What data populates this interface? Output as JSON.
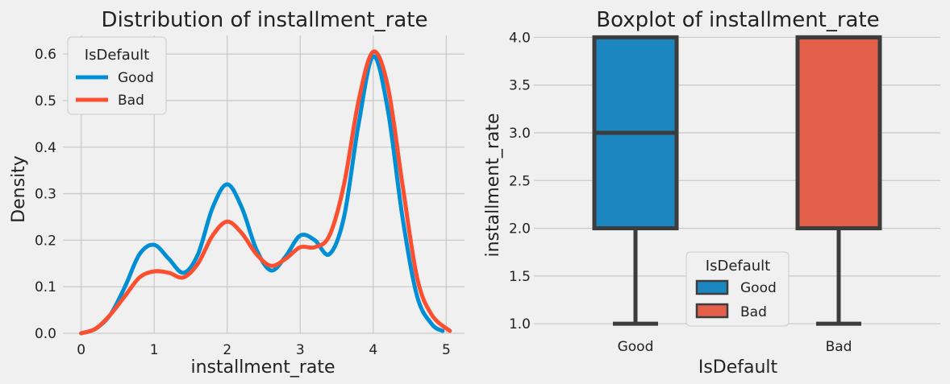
{
  "chart_data": [
    {
      "type": "line",
      "title": "Distribution of installment_rate",
      "xlabel": "installment_rate",
      "ylabel": "Density",
      "xlim": [
        -0.25,
        5.25
      ],
      "ylim": [
        0,
        0.64
      ],
      "xticks": [
        "0",
        "1",
        "2",
        "3",
        "4",
        "5"
      ],
      "yticks": [
        "0.0",
        "0.1",
        "0.2",
        "0.3",
        "0.4",
        "0.5",
        "0.6"
      ],
      "grid": true,
      "legend": {
        "title": "IsDefault",
        "position": "top-left"
      },
      "series": [
        {
          "name": "Good",
          "color": "#008fd5",
          "x": [
            0,
            0.2,
            0.4,
            0.6,
            0.8,
            1.0,
            1.2,
            1.4,
            1.6,
            1.8,
            2.0,
            2.2,
            2.4,
            2.6,
            2.8,
            3.0,
            3.2,
            3.4,
            3.6,
            3.8,
            4.0,
            4.2,
            4.4,
            4.6,
            4.8,
            4.95
          ],
          "y": [
            0.0,
            0.01,
            0.04,
            0.1,
            0.17,
            0.19,
            0.16,
            0.13,
            0.17,
            0.27,
            0.32,
            0.27,
            0.18,
            0.135,
            0.165,
            0.21,
            0.2,
            0.17,
            0.25,
            0.45,
            0.595,
            0.48,
            0.25,
            0.08,
            0.02,
            0.005
          ]
        },
        {
          "name": "Bad",
          "color": "#fc4f30",
          "x": [
            0,
            0.2,
            0.4,
            0.6,
            0.8,
            1.0,
            1.2,
            1.4,
            1.6,
            1.8,
            2.0,
            2.2,
            2.4,
            2.6,
            2.8,
            3.0,
            3.2,
            3.4,
            3.6,
            3.8,
            4.0,
            4.2,
            4.4,
            4.6,
            4.8,
            5.05
          ],
          "y": [
            0.0,
            0.01,
            0.04,
            0.08,
            0.12,
            0.133,
            0.13,
            0.12,
            0.15,
            0.21,
            0.24,
            0.215,
            0.17,
            0.145,
            0.16,
            0.185,
            0.185,
            0.21,
            0.32,
            0.5,
            0.605,
            0.53,
            0.32,
            0.12,
            0.04,
            0.005
          ]
        }
      ]
    },
    {
      "type": "box",
      "title": "Boxplot of installment_rate",
      "xlabel": "IsDefault",
      "ylabel": "installment_rate",
      "ylim": [
        0.9,
        4.02
      ],
      "yticks": [
        "1.0",
        "1.5",
        "2.0",
        "2.5",
        "3.0",
        "3.5",
        "4.0"
      ],
      "categories": [
        "Good",
        "Bad"
      ],
      "grid": true,
      "legend": {
        "title": "IsDefault",
        "position": "lower-center"
      },
      "boxes": [
        {
          "name": "Good",
          "color": "#1b86bf",
          "min": 1,
          "q1": 2,
          "median": 3,
          "q3": 4,
          "max": 4
        },
        {
          "name": "Bad",
          "color": "#e35f49",
          "min": 1,
          "q1": 2,
          "median": 4,
          "q3": 4,
          "max": 4
        }
      ]
    }
  ]
}
